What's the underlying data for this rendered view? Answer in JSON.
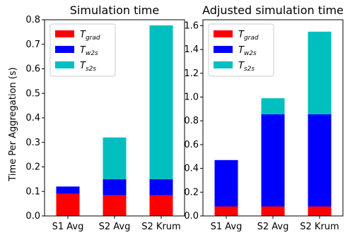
{
  "figure": {
    "ylabel": "Time Per Aggregation (s)"
  },
  "colors": {
    "grad": "#ff0000",
    "w2s": "#0000ff",
    "s2s": "#00bfbf"
  },
  "chart_data": [
    {
      "type": "bar",
      "stacked": true,
      "title": "Simulation time",
      "xlabel": "",
      "ylabel": "Time Per Aggregation (s)",
      "categories": [
        "S1 Avg",
        "S2 Avg",
        "S2 Krum"
      ],
      "series": [
        {
          "name": "T_grad",
          "base": "T",
          "sub": "grad",
          "values": [
            0.09,
            0.085,
            0.085
          ]
        },
        {
          "name": "T_w2s",
          "base": "T",
          "sub": "w2s",
          "values": [
            0.03,
            0.065,
            0.065
          ]
        },
        {
          "name": "T_s2s",
          "base": "T",
          "sub": "s2s",
          "values": [
            0.0,
            0.17,
            0.627
          ]
        }
      ],
      "ylim": [
        0,
        0.8
      ],
      "yticks": [
        "0.0",
        "0.1",
        "0.2",
        "0.3",
        "0.4",
        "0.5",
        "0.6",
        "0.7",
        "0.8"
      ],
      "ytick_values": [
        0,
        0.1,
        0.2,
        0.3,
        0.4,
        0.5,
        0.6,
        0.7,
        0.8
      ],
      "grid": false,
      "legend": "top-left"
    },
    {
      "type": "bar",
      "stacked": true,
      "title": "Adjusted simulation time",
      "xlabel": "",
      "ylabel": "",
      "categories": [
        "S1 Avg",
        "S2 Avg",
        "S2 Krum"
      ],
      "series": [
        {
          "name": "T_grad",
          "base": "T",
          "sub": "grad",
          "values": [
            0.08,
            0.08,
            0.08
          ]
        },
        {
          "name": "T_w2s",
          "base": "T",
          "sub": "w2s",
          "values": [
            0.39,
            0.775,
            0.775
          ]
        },
        {
          "name": "T_s2s",
          "base": "T",
          "sub": "s2s",
          "values": [
            0.0,
            0.135,
            0.695
          ]
        }
      ],
      "ylim": [
        0,
        1.65
      ],
      "yticks": [
        "0.0",
        "0.2",
        "0.4",
        "0.6",
        "0.8",
        "1.0",
        "1.2",
        "1.4",
        "1.6"
      ],
      "ytick_values": [
        0,
        0.2,
        0.4,
        0.6,
        0.8,
        1.0,
        1.2,
        1.4,
        1.6
      ],
      "grid": false,
      "legend": "top-left"
    }
  ]
}
